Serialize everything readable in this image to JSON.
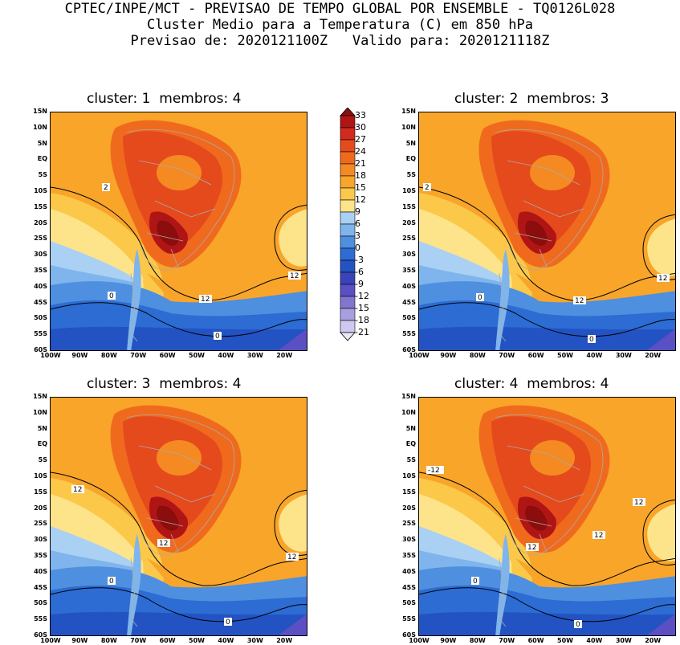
{
  "header": {
    "line1": "CPTEC/INPE/MCT - PREVISAO DE TEMPO GLOBAL POR ENSEMBLE - TQ0126L028",
    "line2": "Cluster Medio para a Temperatura (C) em 850 hPa",
    "line3": "Previsao de: 2020121100Z   Valido para: 2020121118Z"
  },
  "panels": [
    {
      "title": "cluster: 1  membros: 4",
      "contour_labels": [
        "2",
        "12",
        "12",
        "0",
        "0"
      ]
    },
    {
      "title": "cluster: 2  membros: 3",
      "contour_labels": [
        "2",
        "12",
        "12",
        "0",
        "0"
      ]
    },
    {
      "title": "cluster: 3  membros: 4",
      "contour_labels": [
        "12",
        "12",
        "12",
        "0",
        "0"
      ]
    },
    {
      "title": "cluster: 4  membros: 4",
      "contour_labels": [
        "-12",
        "12",
        "12",
        "12",
        "0",
        "0"
      ]
    }
  ],
  "lat_ticks": [
    "15N",
    "10N",
    "5N",
    "EQ",
    "5S",
    "10S",
    "15S",
    "20S",
    "25S",
    "30S",
    "35S",
    "40S",
    "45S",
    "50S",
    "55S",
    "60S"
  ],
  "lon_ticks": [
    "100W",
    "90W",
    "80W",
    "70W",
    "60W",
    "50W",
    "40W",
    "30W",
    "20W"
  ],
  "colorbar": {
    "labels": [
      "33",
      "30",
      "27",
      "24",
      "21",
      "18",
      "15",
      "12",
      "9",
      "6",
      "3",
      "0",
      "-3",
      "-6",
      "-9",
      "-12",
      "-15",
      "-18",
      "-21"
    ],
    "colors": [
      "#8b0d0d",
      "#b01515",
      "#d22a1c",
      "#e54a1c",
      "#f06a1e",
      "#f58a22",
      "#f8a52a",
      "#fbc84a",
      "#fde48a",
      "#aad0f3",
      "#7fb5ec",
      "#4e8fe0",
      "#2c6cd3",
      "#2352c2",
      "#3a44b8",
      "#5a4fc3",
      "#8275d0",
      "#a79fe0",
      "#cfc9ef",
      "#ebe7f9"
    ]
  }
}
